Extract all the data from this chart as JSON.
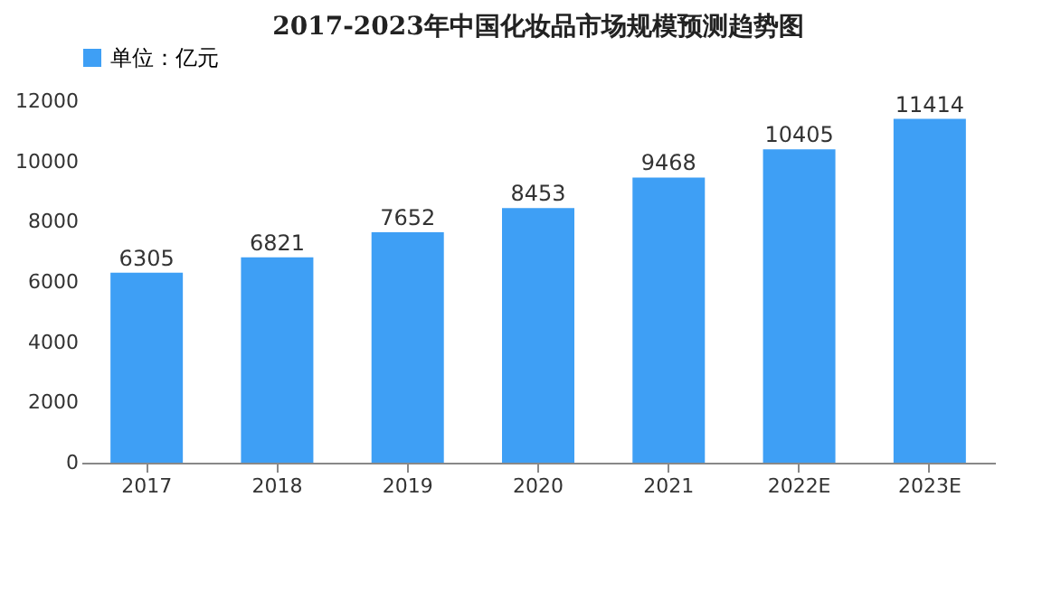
{
  "chart_data": {
    "type": "bar",
    "title": "2017-2023年中国化妆品市场规模预测趋势图",
    "categories": [
      "2017",
      "2018",
      "2019",
      "2020",
      "2021",
      "2022E",
      "2023E"
    ],
    "series": [
      {
        "name": "单位：亿元",
        "color": "#3e9ff5",
        "values": [
          6305,
          6821,
          7652,
          8453,
          9468,
          10405,
          11414
        ]
      }
    ],
    "ylim": [
      0,
      12000
    ],
    "yticks": [
      0,
      2000,
      4000,
      6000,
      8000,
      10000,
      12000
    ],
    "data_labels": true,
    "legend": "top",
    "grid": false
  }
}
